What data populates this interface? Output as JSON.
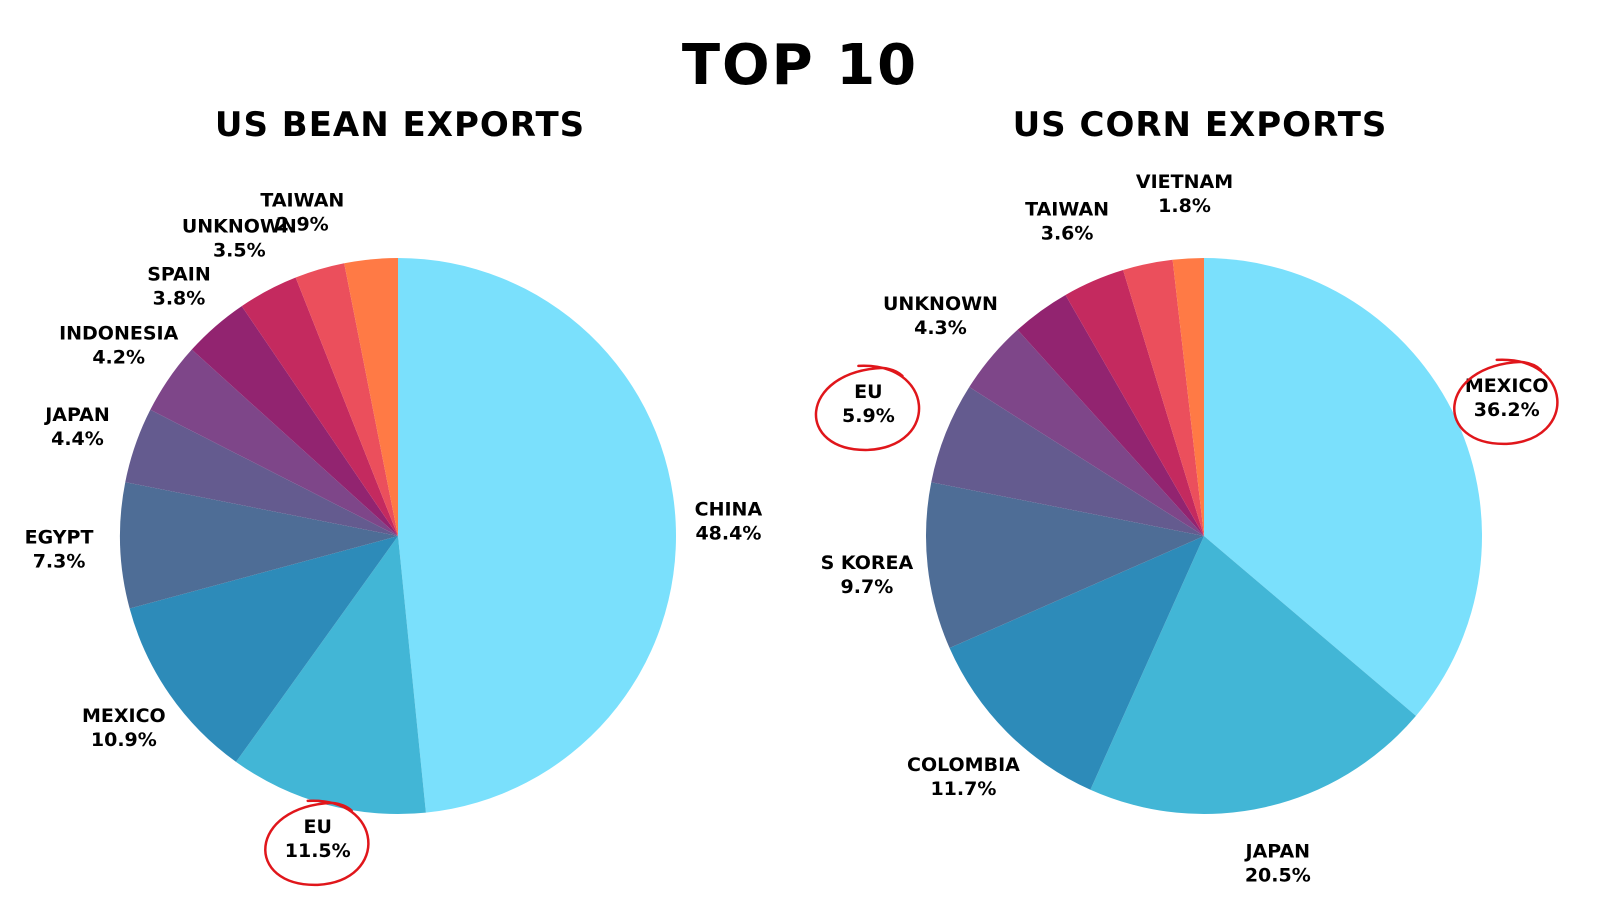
{
  "title": "TOP 10",
  "chart_data": [
    {
      "type": "pie",
      "title": "US BEAN EXPORTS",
      "slices": [
        {
          "name": "CHINA",
          "value": 48.4,
          "label": "48.4%",
          "color": "#7ae0fc",
          "highlighted": false
        },
        {
          "name": "EU",
          "value": 11.5,
          "label": "11.5%",
          "color": "#42b6d6",
          "highlighted": true
        },
        {
          "name": "MEXICO",
          "value": 10.9,
          "label": "10.9%",
          "color": "#2d8bb9",
          "highlighted": false
        },
        {
          "name": "EGYPT",
          "value": 7.3,
          "label": "7.3%",
          "color": "#4e6d96",
          "highlighted": false
        },
        {
          "name": "JAPAN",
          "value": 4.4,
          "label": "4.4%",
          "color": "#645b8f",
          "highlighted": false
        },
        {
          "name": "INDONESIA",
          "value": 4.2,
          "label": "4.2%",
          "color": "#7e4689",
          "highlighted": false
        },
        {
          "name": "SPAIN",
          "value": 3.8,
          "label": "3.8%",
          "color": "#922470",
          "highlighted": false
        },
        {
          "name": "UNKNOWN",
          "value": 3.5,
          "label": "3.5%",
          "color": "#c42a5f",
          "highlighted": false
        },
        {
          "name": "TAIWAN",
          "value": 2.9,
          "label": "2.9%",
          "color": "#eb4f5c",
          "highlighted": false
        },
        {
          "name": "",
          "value": 3.1,
          "label": "",
          "color": "#ff7a45",
          "highlighted": false
        }
      ]
    },
    {
      "type": "pie",
      "title": "US CORN EXPORTS",
      "slices": [
        {
          "name": "MEXICO",
          "value": 36.2,
          "label": "36.2%",
          "color": "#7ae0fc",
          "highlighted": true
        },
        {
          "name": "JAPAN",
          "value": 20.5,
          "label": "20.5%",
          "color": "#42b6d6",
          "highlighted": false
        },
        {
          "name": "COLOMBIA",
          "value": 11.7,
          "label": "11.7%",
          "color": "#2d8bb9",
          "highlighted": false
        },
        {
          "name": "S KOREA",
          "value": 9.7,
          "label": "9.7%",
          "color": "#4e6d96",
          "highlighted": false
        },
        {
          "name": "EU",
          "value": 5.9,
          "label": "5.9%",
          "color": "#645b8f",
          "highlighted": true
        },
        {
          "name": "UNKNOWN",
          "value": 4.3,
          "label": "4.3%",
          "color": "#7e4689",
          "highlighted": false
        },
        {
          "name": "",
          "value": 3.4,
          "label": "",
          "color": "#922470",
          "highlighted": false
        },
        {
          "name": "TAIWAN",
          "value": 3.6,
          "label": "3.6%",
          "color": "#c42a5f",
          "highlighted": false
        },
        {
          "name": "",
          "value": 2.9,
          "label": "",
          "color": "#eb4f5c",
          "highlighted": false
        },
        {
          "name": "VIETNAM",
          "value": 1.8,
          "label": "1.8%",
          "color": "#ff7a45",
          "highlighted": false
        }
      ]
    }
  ]
}
